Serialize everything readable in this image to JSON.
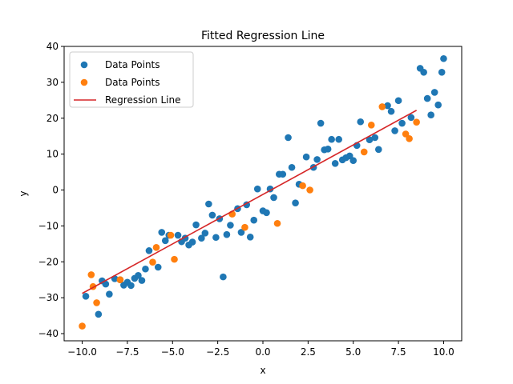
{
  "chart_data": {
    "type": "scatter",
    "title": "Fitted Regression Line",
    "xlabel": "x",
    "ylabel": "y",
    "xlim": [
      -11,
      11
    ],
    "ylim": [
      -42,
      40
    ],
    "xticks": [
      -10.0,
      -7.5,
      -5.0,
      -2.5,
      0.0,
      2.5,
      5.0,
      7.5,
      10.0
    ],
    "xtick_labels": [
      "−10.0",
      "−7.5",
      "−5.0",
      "−2.5",
      "0.0",
      "2.5",
      "5.0",
      "7.5",
      "10.0"
    ],
    "yticks": [
      -40,
      -30,
      -20,
      -10,
      0,
      10,
      20,
      30,
      40
    ],
    "ytick_labels": [
      "−40",
      "−30",
      "−20",
      "−10",
      "0",
      "10",
      "20",
      "30",
      "40"
    ],
    "grid": false,
    "legend_position": "top-left",
    "series": [
      {
        "name": "Data Points",
        "kind": "scatter",
        "color": "#1f77b4",
        "points": [
          [
            -9.8,
            -29.6
          ],
          [
            -9.1,
            -34.6
          ],
          [
            -8.9,
            -25.3
          ],
          [
            -8.7,
            -26.2
          ],
          [
            -8.5,
            -29.0
          ],
          [
            -8.2,
            -24.7
          ],
          [
            -7.9,
            -25.0
          ],
          [
            -7.7,
            -26.5
          ],
          [
            -7.5,
            -25.7
          ],
          [
            -7.3,
            -26.6
          ],
          [
            -7.1,
            -24.6
          ],
          [
            -6.9,
            -23.8
          ],
          [
            -6.7,
            -25.2
          ],
          [
            -6.5,
            -22.0
          ],
          [
            -6.3,
            -16.9
          ],
          [
            -5.8,
            -21.5
          ],
          [
            -5.6,
            -11.8
          ],
          [
            -5.4,
            -14.1
          ],
          [
            -5.2,
            -12.6
          ],
          [
            -4.7,
            -12.6
          ],
          [
            -4.5,
            -14.4
          ],
          [
            -4.3,
            -13.4
          ],
          [
            -4.1,
            -15.3
          ],
          [
            -3.9,
            -14.5
          ],
          [
            -3.7,
            -9.7
          ],
          [
            -3.4,
            -13.4
          ],
          [
            -3.2,
            -12.0
          ],
          [
            -3.0,
            -3.9
          ],
          [
            -2.8,
            -7.0
          ],
          [
            -2.6,
            -13.2
          ],
          [
            -2.4,
            -8.0
          ],
          [
            -2.2,
            -24.2
          ],
          [
            -2.0,
            -12.4
          ],
          [
            -1.8,
            -9.8
          ],
          [
            -1.4,
            -5.2
          ],
          [
            -1.2,
            -11.8
          ],
          [
            -0.9,
            -4.1
          ],
          [
            -0.7,
            -13.1
          ],
          [
            -0.5,
            -8.4
          ],
          [
            -0.3,
            0.3
          ],
          [
            0.0,
            -5.8
          ],
          [
            0.2,
            -6.3
          ],
          [
            0.4,
            0.3
          ],
          [
            0.6,
            -2.1
          ],
          [
            0.9,
            4.4
          ],
          [
            1.1,
            4.4
          ],
          [
            1.4,
            14.6
          ],
          [
            1.6,
            6.3
          ],
          [
            1.8,
            -3.6
          ],
          [
            2.0,
            1.6
          ],
          [
            2.4,
            9.2
          ],
          [
            2.8,
            6.3
          ],
          [
            3.0,
            8.5
          ],
          [
            3.2,
            18.6
          ],
          [
            3.4,
            11.2
          ],
          [
            3.6,
            11.4
          ],
          [
            3.8,
            14.1
          ],
          [
            4.0,
            7.4
          ],
          [
            4.2,
            14.1
          ],
          [
            4.4,
            8.4
          ],
          [
            4.6,
            9.0
          ],
          [
            4.8,
            9.5
          ],
          [
            5.0,
            8.2
          ],
          [
            5.2,
            12.4
          ],
          [
            5.4,
            19.0
          ],
          [
            5.9,
            14.0
          ],
          [
            6.2,
            14.6
          ],
          [
            6.4,
            11.3
          ],
          [
            6.9,
            23.5
          ],
          [
            7.1,
            21.9
          ],
          [
            7.3,
            16.5
          ],
          [
            7.5,
            24.9
          ],
          [
            7.7,
            18.6
          ],
          [
            8.2,
            20.2
          ],
          [
            8.7,
            33.9
          ],
          [
            8.9,
            32.8
          ],
          [
            9.1,
            25.5
          ],
          [
            9.3,
            20.9
          ],
          [
            9.5,
            27.2
          ],
          [
            9.7,
            23.7
          ],
          [
            9.9,
            32.8
          ],
          [
            10.0,
            36.6
          ]
        ]
      },
      {
        "name": "Data Points",
        "kind": "scatter",
        "color": "#ff7f0e",
        "points": [
          [
            -10.0,
            -37.9
          ],
          [
            -9.5,
            -23.6
          ],
          [
            -9.4,
            -26.9
          ],
          [
            -9.2,
            -31.4
          ],
          [
            -7.9,
            -25.0
          ],
          [
            -6.1,
            -20.1
          ],
          [
            -5.9,
            -16.0
          ],
          [
            -5.1,
            -12.6
          ],
          [
            -4.9,
            -19.3
          ],
          [
            -1.7,
            -6.7
          ],
          [
            -1.0,
            -10.4
          ],
          [
            0.8,
            -9.3
          ],
          [
            2.2,
            1.2
          ],
          [
            2.6,
            0.0
          ],
          [
            5.6,
            10.6
          ],
          [
            6.0,
            18.1
          ],
          [
            6.6,
            23.2
          ],
          [
            7.9,
            15.6
          ],
          [
            8.1,
            14.3
          ],
          [
            8.5,
            18.9
          ]
        ]
      },
      {
        "name": "Regression Line",
        "kind": "line",
        "color": "#d62728",
        "x": [
          -10.0,
          8.5
        ],
        "y": [
          -28.8,
          22.2
        ]
      }
    ]
  }
}
